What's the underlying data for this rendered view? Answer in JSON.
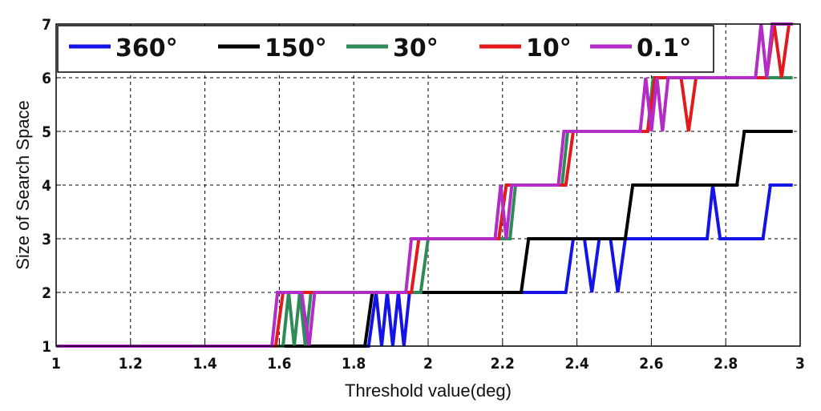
{
  "chart_data": {
    "type": "line",
    "title": "",
    "xlabel": "Threshold value(deg)",
    "ylabel": "Size of Search Space",
    "xlim": [
      1,
      3
    ],
    "ylim": [
      1,
      7
    ],
    "xticks": [
      1,
      1.2,
      1.4,
      1.6,
      1.8,
      2,
      2.2,
      2.4,
      2.6,
      2.8,
      3
    ],
    "xtick_labels": [
      "1",
      "1.2",
      "1.4",
      "1.6",
      "1.8",
      "2",
      "2.2",
      "2.4",
      "2.6",
      "2.8",
      "3"
    ],
    "yticks": [
      1,
      2,
      3,
      4,
      5,
      6,
      7
    ],
    "ytick_labels": [
      "1",
      "2",
      "3",
      "4",
      "5",
      "6",
      "7"
    ],
    "grid": true,
    "legend_position": "top",
    "series": [
      {
        "name": "360°",
        "color": "#1414e6",
        "points": [
          [
            1,
            1
          ],
          [
            1.84,
            1
          ],
          [
            1.86,
            2
          ],
          [
            1.875,
            1
          ],
          [
            1.89,
            2
          ],
          [
            1.905,
            1
          ],
          [
            1.92,
            2
          ],
          [
            1.935,
            1
          ],
          [
            1.95,
            2
          ],
          [
            2.26,
            2
          ],
          [
            2.37,
            2
          ],
          [
            2.39,
            3
          ],
          [
            2.42,
            3
          ],
          [
            2.44,
            2
          ],
          [
            2.46,
            3
          ],
          [
            2.49,
            3
          ],
          [
            2.51,
            2
          ],
          [
            2.53,
            3
          ],
          [
            2.75,
            3
          ],
          [
            2.765,
            4
          ],
          [
            2.785,
            3
          ],
          [
            2.9,
            3
          ],
          [
            2.92,
            4
          ],
          [
            2.98,
            4
          ]
        ]
      },
      {
        "name": "150°",
        "color": "#000000",
        "points": [
          [
            1,
            1
          ],
          [
            1.83,
            1
          ],
          [
            1.85,
            2
          ],
          [
            2.25,
            2
          ],
          [
            2.27,
            3
          ],
          [
            2.53,
            3
          ],
          [
            2.55,
            4
          ],
          [
            2.83,
            4
          ],
          [
            2.85,
            5
          ],
          [
            2.98,
            5
          ]
        ]
      },
      {
        "name": "30°",
        "color": "#2e8b57",
        "points": [
          [
            1,
            1
          ],
          [
            1.61,
            1
          ],
          [
            1.625,
            2
          ],
          [
            1.64,
            1
          ],
          [
            1.655,
            2
          ],
          [
            1.67,
            1
          ],
          [
            1.685,
            2
          ],
          [
            1.98,
            2
          ],
          [
            2.0,
            3
          ],
          [
            2.22,
            3
          ],
          [
            2.235,
            4
          ],
          [
            2.36,
            4
          ],
          [
            2.375,
            5
          ],
          [
            2.59,
            5
          ],
          [
            2.605,
            6
          ],
          [
            2.98,
            6
          ]
        ]
      },
      {
        "name": "10°",
        "color": "#e31a1c",
        "points": [
          [
            1,
            1
          ],
          [
            1.59,
            1
          ],
          [
            1.61,
            2
          ],
          [
            1.955,
            2
          ],
          [
            1.975,
            3
          ],
          [
            2.19,
            3
          ],
          [
            2.21,
            4
          ],
          [
            2.37,
            4
          ],
          [
            2.39,
            5
          ],
          [
            2.59,
            5
          ],
          [
            2.61,
            6
          ],
          [
            2.68,
            6
          ],
          [
            2.7,
            5
          ],
          [
            2.72,
            6
          ],
          [
            2.91,
            6
          ],
          [
            2.93,
            7
          ],
          [
            2.95,
            6
          ],
          [
            2.97,
            7
          ],
          [
            2.98,
            7
          ]
        ]
      },
      {
        "name": "0.1°",
        "color": "#b32cc7",
        "points": [
          [
            1,
            1
          ],
          [
            1.58,
            1
          ],
          [
            1.595,
            2
          ],
          [
            1.66,
            2
          ],
          [
            1.68,
            1
          ],
          [
            1.695,
            2
          ],
          [
            1.94,
            2
          ],
          [
            1.955,
            3
          ],
          [
            2.18,
            3
          ],
          [
            2.195,
            4
          ],
          [
            2.21,
            3
          ],
          [
            2.225,
            4
          ],
          [
            2.35,
            4
          ],
          [
            2.365,
            5
          ],
          [
            2.57,
            5
          ],
          [
            2.585,
            6
          ],
          [
            2.6,
            5
          ],
          [
            2.615,
            6
          ],
          [
            2.63,
            5
          ],
          [
            2.645,
            6
          ],
          [
            2.88,
            6
          ],
          [
            2.895,
            7
          ],
          [
            2.91,
            6
          ],
          [
            2.925,
            7
          ],
          [
            2.98,
            7
          ]
        ]
      }
    ]
  }
}
